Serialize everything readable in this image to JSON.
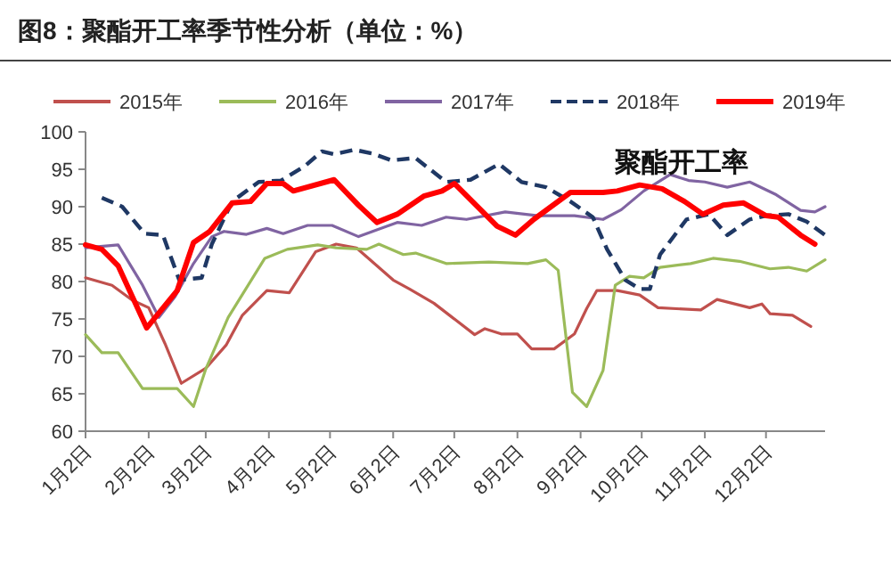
{
  "chart_data": {
    "type": "line",
    "title": "图8：聚酯开工率季节性分析（单位：%）",
    "annotations": [
      "聚酯开工率"
    ],
    "legend": "top",
    "grid": false,
    "marker": "none",
    "ylim": [
      60,
      100
    ],
    "yticks": [
      60,
      65,
      70,
      75,
      80,
      85,
      90,
      95,
      100
    ],
    "xlim": [
      "--01-02",
      "--12-31"
    ],
    "xticks": [
      {
        "value": "--01-02",
        "label": "1月2日"
      },
      {
        "value": "--02-02",
        "label": "2月2日"
      },
      {
        "value": "--03-02",
        "label": "3月2日"
      },
      {
        "value": "--04-02",
        "label": "4月2日"
      },
      {
        "value": "--05-02",
        "label": "5月2日"
      },
      {
        "value": "--06-02",
        "label": "6月2日"
      },
      {
        "value": "--07-02",
        "label": "7月2日"
      },
      {
        "value": "--08-02",
        "label": "8月2日"
      },
      {
        "value": "--09-02",
        "label": "9月2日"
      },
      {
        "value": "--10-02",
        "label": "10月2日"
      },
      {
        "value": "--11-02",
        "label": "11月2日"
      },
      {
        "value": "--12-02",
        "label": "12月2日"
      }
    ],
    "series": [
      {
        "name": "2015年",
        "color": "#c0504d",
        "x": [
          "--01-02",
          "--01-15",
          "--01-25",
          "--02-02",
          "--02-10",
          "--02-18",
          "--03-02",
          "--03-12",
          "--03-20",
          "--04-01",
          "--04-12",
          "--04-25",
          "--05-05",
          "--05-15",
          "--06-02",
          "--06-10",
          "--06-22",
          "--07-12",
          "--07-17",
          "--07-25",
          "--08-02",
          "--08-09",
          "--08-20",
          "--08-30",
          "--09-05",
          "--09-10",
          "--09-20",
          "--10-01",
          "--10-10",
          "--10-31",
          "--11-08",
          "--11-24",
          "--11-30",
          "--12-04",
          "--12-15",
          "--12-24"
        ],
        "values": [
          80.5,
          79.5,
          77.5,
          76.5,
          71.7,
          66.4,
          68.4,
          71.5,
          75.5,
          78.8,
          78.5,
          84,
          85,
          84.5,
          80.2,
          79,
          77.1,
          72.9,
          73.7,
          73,
          73,
          71,
          71,
          73,
          76.4,
          78.8,
          78.8,
          78.2,
          76.5,
          76.2,
          77.6,
          76.5,
          77,
          75.7,
          75.5,
          74
        ]
      },
      {
        "name": "2016年",
        "color": "#9bbb59",
        "x": [
          "--01-02",
          "--01-10",
          "--01-18",
          "--01-30",
          "--02-16",
          "--02-24",
          "--03-02",
          "--03-13",
          "--03-31",
          "--04-11",
          "--04-26",
          "--05-05",
          "--05-20",
          "--05-26",
          "--06-07",
          "--06-13",
          "--06-28",
          "--07-19",
          "--08-07",
          "--08-16",
          "--08-22",
          "--08-29",
          "--09-05",
          "--09-13",
          "--09-19",
          "--09-26",
          "--10-03",
          "--10-11",
          "--10-26",
          "--11-06",
          "--11-19",
          "--12-04",
          "--12-13",
          "--12-22",
          "--12-31"
        ],
        "values": [
          72.9,
          70.5,
          70.5,
          65.7,
          65.7,
          63.3,
          68.3,
          75.2,
          83.1,
          84.3,
          84.9,
          84.5,
          84.3,
          85,
          83.6,
          83.8,
          82.4,
          82.6,
          82.4,
          82.9,
          81.5,
          65.2,
          63.3,
          68.1,
          79.5,
          80.7,
          80.5,
          81.9,
          82.4,
          83.1,
          82.7,
          81.7,
          81.9,
          81.4,
          82.9
        ]
      },
      {
        "name": "2017年",
        "color": "#8064a2",
        "x": [
          "--01-02",
          "--01-18",
          "--01-30",
          "--02-07",
          "--02-15",
          "--02-24",
          "--03-05",
          "--03-11",
          "--03-22",
          "--04-01",
          "--04-09",
          "--04-21",
          "--05-03",
          "--05-16",
          "--06-04",
          "--06-16",
          "--06-28",
          "--07-08",
          "--07-27",
          "--08-12",
          "--08-30",
          "--09-13",
          "--09-22",
          "--10-03",
          "--10-16",
          "--10-25",
          "--11-02",
          "--11-13",
          "--11-24",
          "--12-07",
          "--12-19",
          "--12-26",
          "--12-31"
        ],
        "values": [
          84.5,
          84.9,
          79.5,
          75.2,
          78,
          82.4,
          86,
          86.7,
          86.3,
          87.1,
          86.4,
          87.5,
          87.5,
          86,
          87.9,
          87.5,
          88.6,
          88.3,
          89.3,
          88.8,
          88.8,
          88.3,
          89.6,
          92.1,
          94.3,
          93.5,
          93.3,
          92.6,
          93.3,
          91.6,
          89.5,
          89.3,
          90
        ]
      },
      {
        "name": "2018年",
        "color": "#1f3864",
        "line_style": "dashed",
        "x": [
          "--01-10",
          "--01-20",
          "--01-31",
          "--02-09",
          "--02-17",
          "--02-28",
          "--03-05",
          "--03-15",
          "--03-28",
          "--04-08",
          "--04-20",
          "--04-28",
          "--05-04",
          "--05-14",
          "--05-23",
          "--06-01",
          "--06-13",
          "--06-28",
          "--07-10",
          "--07-24",
          "--08-04",
          "--08-16",
          "--08-28",
          "--09-08",
          "--09-15",
          "--09-24",
          "--10-01",
          "--10-06",
          "--10-11",
          "--10-24",
          "--11-04",
          "--11-13",
          "--11-24",
          "--12-02",
          "--12-13",
          "--12-22",
          "--12-31"
        ],
        "values": [
          91.2,
          90,
          86.4,
          86.2,
          80.2,
          80.5,
          85,
          90.7,
          93.3,
          93.5,
          95.5,
          97.4,
          97,
          97.6,
          97.1,
          96.2,
          96.5,
          93.3,
          93.6,
          95.7,
          93.3,
          92.6,
          90.7,
          88.6,
          84.3,
          80.2,
          79,
          79,
          83.6,
          88.3,
          89,
          86.2,
          88.3,
          88.8,
          89,
          88,
          86.2
        ]
      },
      {
        "name": "2019年",
        "color": "#ff0000",
        "x": [
          "--01-02",
          "--01-10",
          "--01-18",
          "--02-01",
          "--02-16",
          "--02-24",
          "--03-04",
          "--03-15",
          "--03-24",
          "--04-01",
          "--04-09",
          "--04-14",
          "--05-04",
          "--05-16",
          "--05-25",
          "--06-04",
          "--06-17",
          "--06-26",
          "--07-02",
          "--07-23",
          "--08-01",
          "--08-10",
          "--08-28",
          "--09-13",
          "--09-20",
          "--10-01",
          "--10-12",
          "--10-23",
          "--11-01",
          "--11-11",
          "--11-21",
          "--12-02",
          "--12-08",
          "--12-19",
          "--12-26"
        ],
        "values": [
          84.9,
          84.3,
          82.1,
          73.8,
          78.8,
          85.2,
          86.7,
          90.5,
          90.7,
          93.1,
          93.1,
          92.1,
          93.6,
          90.2,
          87.9,
          89,
          91.4,
          92.1,
          93.1,
          87.4,
          86.2,
          88.3,
          91.9,
          91.9,
          92.1,
          92.9,
          92.4,
          90.7,
          89,
          90.2,
          90.5,
          88.8,
          88.6,
          86.2,
          85
        ]
      }
    ]
  }
}
